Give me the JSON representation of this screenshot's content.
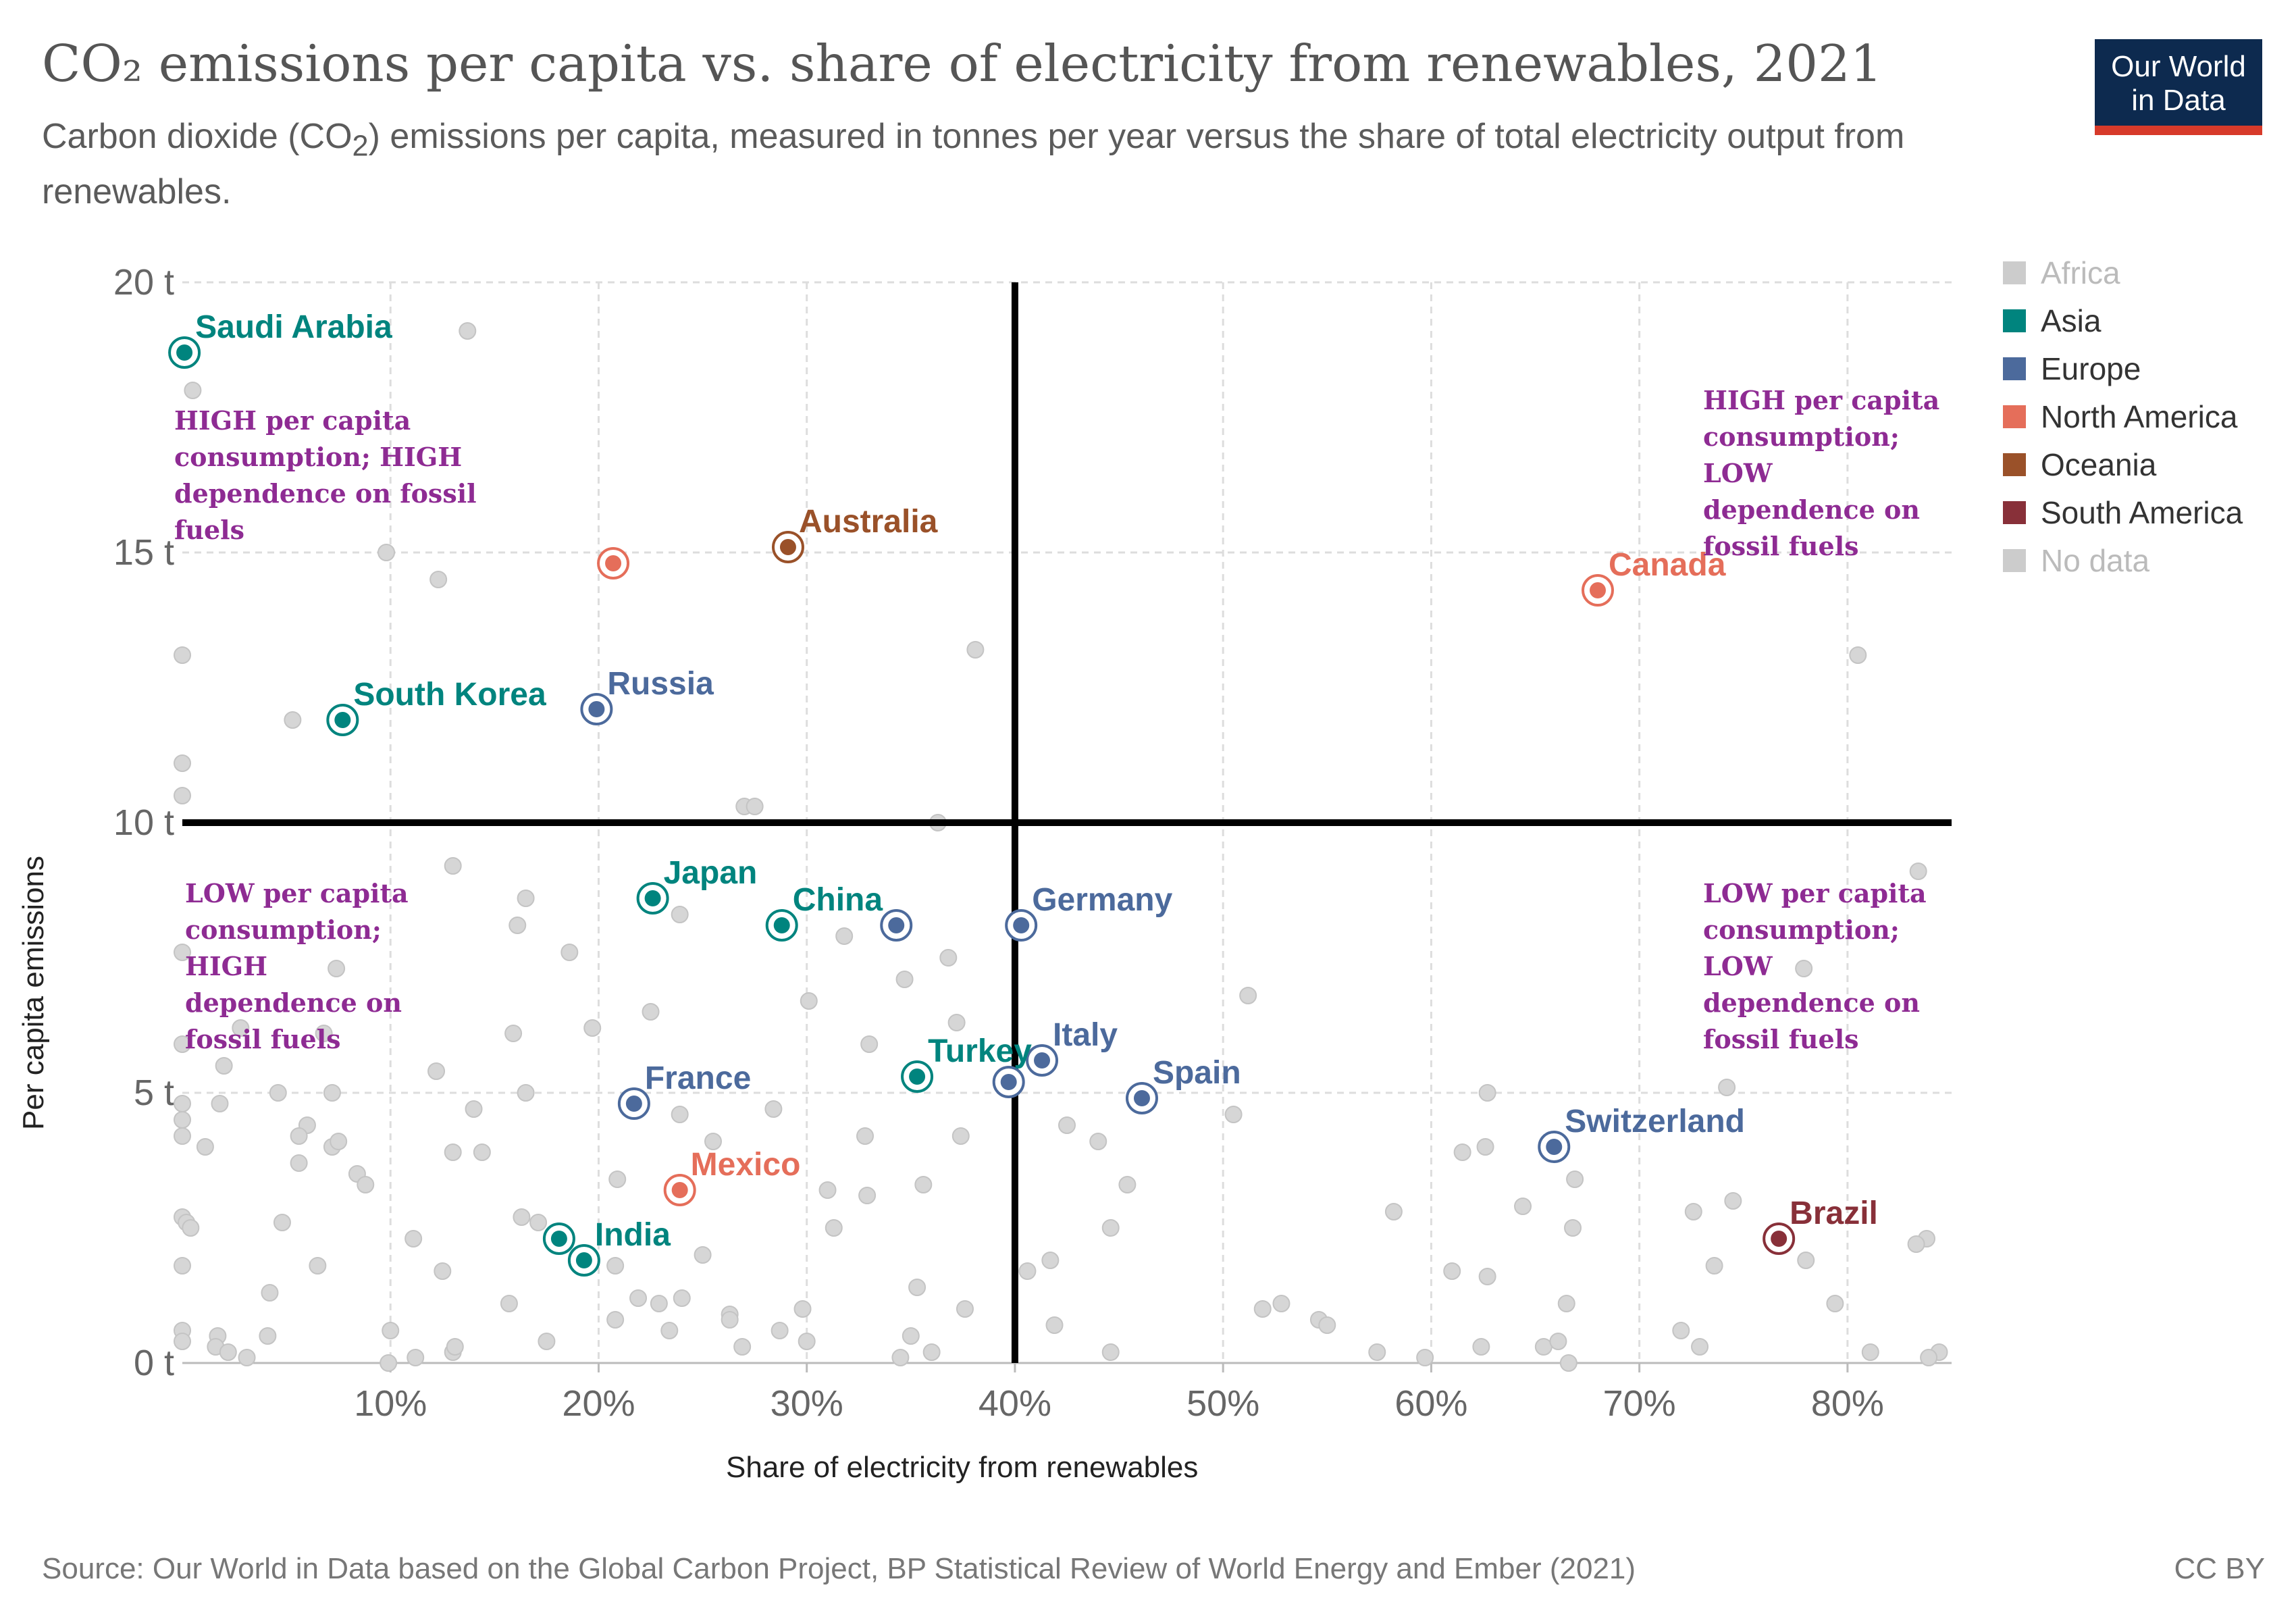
{
  "header": {
    "title": "CO₂ emissions per capita vs. share of electricity from renewables, 2021",
    "subtitle_pre": "Carbon dioxide (CO",
    "subtitle_sub": "2",
    "subtitle_post": ") emissions per capita, measured in tonnes per year versus the share of total electricity output from renewables.",
    "logo_line1": "Our World",
    "logo_line2": "in Data"
  },
  "footer": {
    "source": "Source: Our World in Data based on the Global Carbon Project, BP Statistical Review of World Energy and Ember (2021)",
    "license": "CC BY"
  },
  "colors": {
    "Asia": "#00847e",
    "Europe": "#4c6a9c",
    "North America": "#e56e5a",
    "Oceania": "#9a5129",
    "South America": "#883039",
    "Africa": "#d0d0d0",
    "No data": "#d0d0d0",
    "background_point": "#d6d6d6",
    "divider": "#000000",
    "annotation": "#8e2b93"
  },
  "legend": [
    {
      "label": "Africa",
      "color": "#cccccc",
      "muted": true
    },
    {
      "label": "Asia",
      "color": "#00847e",
      "muted": false
    },
    {
      "label": "Europe",
      "color": "#4c6a9c",
      "muted": false
    },
    {
      "label": "North America",
      "color": "#e56e5a",
      "muted": false
    },
    {
      "label": "Oceania",
      "color": "#9a5129",
      "muted": false
    },
    {
      "label": "South America",
      "color": "#883039",
      "muted": false
    },
    {
      "label": "No data",
      "color": "#cccccc",
      "muted": true
    }
  ],
  "annotations": {
    "top_left": "HIGH per capita\nconsumption; HIGH\ndependence on fossil\nfuels",
    "top_right": "HIGH per capita\nconsumption;\nLOW\ndependence on\nfossil fuels",
    "bottom_left": "LOW per capita\nconsumption;\nHIGH\ndependence on\nfossil fuels",
    "bottom_right": "LOW per capita\nconsumption;\nLOW\ndependence on\nfossil fuels"
  },
  "chart_data": {
    "type": "scatter",
    "title": "CO₂ emissions per capita vs. share of electricity from renewables, 2021",
    "xlabel": "Share of electricity from renewables",
    "ylabel": "Per capita emissions",
    "xlim": [
      0,
      85
    ],
    "ylim": [
      0,
      20
    ],
    "x_ticks": [
      10,
      20,
      30,
      40,
      50,
      60,
      70,
      80
    ],
    "x_tick_labels": [
      "10%",
      "20%",
      "30%",
      "40%",
      "50%",
      "60%",
      "70%",
      "80%"
    ],
    "y_ticks": [
      0,
      5,
      10,
      15,
      20
    ],
    "y_tick_labels": [
      "0 t",
      "5 t",
      "10 t",
      "15 t",
      "20 t"
    ],
    "grid": true,
    "legend_position": "right",
    "divider_lines": {
      "x": 40,
      "y": 10
    },
    "highlighted": [
      {
        "name": "Saudi Arabia",
        "continent": "Asia",
        "x": 0.1,
        "y": 18.7
      },
      {
        "name": "South Korea",
        "continent": "Asia",
        "x": 7.7,
        "y": 11.9
      },
      {
        "name": "Russia",
        "continent": "Europe",
        "x": 19.9,
        "y": 12.1
      },
      {
        "name": "",
        "continent": "North America",
        "x": 20.7,
        "y": 14.8
      },
      {
        "name": "Australia",
        "continent": "Oceania",
        "x": 29.1,
        "y": 15.1
      },
      {
        "name": "Canada",
        "continent": "North America",
        "x": 68.0,
        "y": 14.3
      },
      {
        "name": "Japan",
        "continent": "Asia",
        "x": 22.6,
        "y": 8.6
      },
      {
        "name": "China",
        "continent": "Asia",
        "x": 28.8,
        "y": 8.1
      },
      {
        "name": "",
        "continent": "Europe",
        "x": 34.3,
        "y": 8.1
      },
      {
        "name": "Germany",
        "continent": "Europe",
        "x": 40.3,
        "y": 8.1
      },
      {
        "name": "France",
        "continent": "Europe",
        "x": 21.7,
        "y": 4.8
      },
      {
        "name": "Turkey",
        "continent": "Asia",
        "x": 35.3,
        "y": 5.3
      },
      {
        "name": "",
        "continent": "Europe",
        "x": 39.7,
        "y": 5.2
      },
      {
        "name": "Italy",
        "continent": "Europe",
        "x": 41.3,
        "y": 5.6
      },
      {
        "name": "Spain",
        "continent": "Europe",
        "x": 46.1,
        "y": 4.9
      },
      {
        "name": "Mexico",
        "continent": "North America",
        "x": 23.9,
        "y": 3.2
      },
      {
        "name": "",
        "continent": "Asia",
        "x": 18.1,
        "y": 2.3
      },
      {
        "name": "India",
        "continent": "Asia",
        "x": 19.3,
        "y": 1.9
      },
      {
        "name": "Switzerland",
        "continent": "Europe",
        "x": 65.9,
        "y": 4.0
      },
      {
        "name": "Brazil",
        "continent": "South America",
        "x": 76.7,
        "y": 2.3
      }
    ],
    "others": [
      [
        13.7,
        19.1
      ],
      [
        0.5,
        18.0
      ],
      [
        9.8,
        15.0
      ],
      [
        12.3,
        14.5
      ],
      [
        0.0,
        13.1
      ],
      [
        38.1,
        13.2
      ],
      [
        80.5,
        13.1
      ],
      [
        5.3,
        11.9
      ],
      [
        0.0,
        11.1
      ],
      [
        0.0,
        10.5
      ],
      [
        27.0,
        10.3
      ],
      [
        27.5,
        10.3
      ],
      [
        36.3,
        10.0
      ],
      [
        13.0,
        9.2
      ],
      [
        83.4,
        9.1
      ],
      [
        16.5,
        8.6
      ],
      [
        23.9,
        8.3
      ],
      [
        16.1,
        8.1
      ],
      [
        31.8,
        7.9
      ],
      [
        18.6,
        7.6
      ],
      [
        36.8,
        7.5
      ],
      [
        0.0,
        7.6
      ],
      [
        7.4,
        7.3
      ],
      [
        34.7,
        7.1
      ],
      [
        77.9,
        7.3
      ],
      [
        51.2,
        6.8
      ],
      [
        30.1,
        6.7
      ],
      [
        22.5,
        6.5
      ],
      [
        37.2,
        6.3
      ],
      [
        2.8,
        6.2
      ],
      [
        15.9,
        6.1
      ],
      [
        19.7,
        6.2
      ],
      [
        6.8,
        6.1
      ],
      [
        0.0,
        5.9
      ],
      [
        33.0,
        5.9
      ],
      [
        2.0,
        5.5
      ],
      [
        12.2,
        5.4
      ],
      [
        4.6,
        5.0
      ],
      [
        7.2,
        5.0
      ],
      [
        16.5,
        5.0
      ],
      [
        62.7,
        5.0
      ],
      [
        74.2,
        5.1
      ],
      [
        0.0,
        4.8
      ],
      [
        1.8,
        4.8
      ],
      [
        14.0,
        4.7
      ],
      [
        23.9,
        4.6
      ],
      [
        28.4,
        4.7
      ],
      [
        50.5,
        4.6
      ],
      [
        0.0,
        4.5
      ],
      [
        6.0,
        4.4
      ],
      [
        5.6,
        4.2
      ],
      [
        42.5,
        4.4
      ],
      [
        0.0,
        4.2
      ],
      [
        1.1,
        4.0
      ],
      [
        7.2,
        4.0
      ],
      [
        7.5,
        4.1
      ],
      [
        25.5,
        4.1
      ],
      [
        32.8,
        4.2
      ],
      [
        37.4,
        4.2
      ],
      [
        44.0,
        4.1
      ],
      [
        13.0,
        3.9
      ],
      [
        14.4,
        3.9
      ],
      [
        61.5,
        3.9
      ],
      [
        62.6,
        4.0
      ],
      [
        5.6,
        3.7
      ],
      [
        8.4,
        3.5
      ],
      [
        8.8,
        3.3
      ],
      [
        20.9,
        3.4
      ],
      [
        31.0,
        3.2
      ],
      [
        32.9,
        3.1
      ],
      [
        35.6,
        3.3
      ],
      [
        45.4,
        3.3
      ],
      [
        66.9,
        3.4
      ],
      [
        74.5,
        3.0
      ],
      [
        0.0,
        2.7
      ],
      [
        0.2,
        2.6
      ],
      [
        0.4,
        2.5
      ],
      [
        4.8,
        2.6
      ],
      [
        16.3,
        2.7
      ],
      [
        17.1,
        2.6
      ],
      [
        31.3,
        2.5
      ],
      [
        44.6,
        2.5
      ],
      [
        64.4,
        2.9
      ],
      [
        66.8,
        2.5
      ],
      [
        72.6,
        2.8
      ],
      [
        83.8,
        2.3
      ],
      [
        11.1,
        2.3
      ],
      [
        25.0,
        2.0
      ],
      [
        58.2,
        2.8
      ],
      [
        83.3,
        2.2
      ],
      [
        0.0,
        1.8
      ],
      [
        6.5,
        1.8
      ],
      [
        12.5,
        1.7
      ],
      [
        20.8,
        1.8
      ],
      [
        40.6,
        1.7
      ],
      [
        41.7,
        1.9
      ],
      [
        61.0,
        1.7
      ],
      [
        62.7,
        1.6
      ],
      [
        73.6,
        1.8
      ],
      [
        78.0,
        1.9
      ],
      [
        4.2,
        1.3
      ],
      [
        15.7,
        1.1
      ],
      [
        21.9,
        1.2
      ],
      [
        22.9,
        1.1
      ],
      [
        24.0,
        1.2
      ],
      [
        35.3,
        1.4
      ],
      [
        51.9,
        1.0
      ],
      [
        52.8,
        1.1
      ],
      [
        66.5,
        1.1
      ],
      [
        79.4,
        1.1
      ],
      [
        20.8,
        0.8
      ],
      [
        26.3,
        0.9
      ],
      [
        26.3,
        0.8
      ],
      [
        29.8,
        1.0
      ],
      [
        37.6,
        1.0
      ],
      [
        41.9,
        0.7
      ],
      [
        54.6,
        0.8
      ],
      [
        55.0,
        0.7
      ],
      [
        0.0,
        0.6
      ],
      [
        1.7,
        0.5
      ],
      [
        4.1,
        0.5
      ],
      [
        10.0,
        0.6
      ],
      [
        23.4,
        0.6
      ],
      [
        28.7,
        0.6
      ],
      [
        35.0,
        0.5
      ],
      [
        72.0,
        0.6
      ],
      [
        0.0,
        0.4
      ],
      [
        1.6,
        0.3
      ],
      [
        2.2,
        0.2
      ],
      [
        13.0,
        0.2
      ],
      [
        17.5,
        0.4
      ],
      [
        26.9,
        0.3
      ],
      [
        30.0,
        0.4
      ],
      [
        34.5,
        0.1
      ],
      [
        36.0,
        0.2
      ],
      [
        44.6,
        0.2
      ],
      [
        57.4,
        0.2
      ],
      [
        59.7,
        0.1
      ],
      [
        62.4,
        0.3
      ],
      [
        65.4,
        0.3
      ],
      [
        66.1,
        0.4
      ],
      [
        66.6,
        0.0
      ],
      [
        72.9,
        0.3
      ],
      [
        81.1,
        0.2
      ],
      [
        84.4,
        0.2
      ],
      [
        83.9,
        0.1
      ],
      [
        9.9,
        0.0
      ],
      [
        11.2,
        0.1
      ],
      [
        3.1,
        0.1
      ],
      [
        13.1,
        0.3
      ]
    ]
  }
}
